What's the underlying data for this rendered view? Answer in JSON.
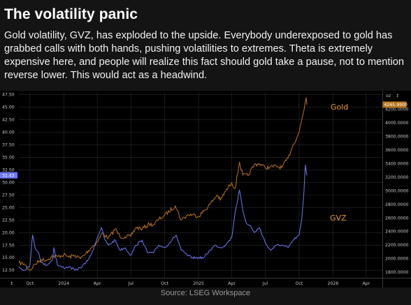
{
  "header": {
    "title": "The volatility panic",
    "body": "Gold volatility, GVZ, has exploded to the upside. Everybody underexposed to gold has grabbed calls with both hands, pushing volatilities to extremes. Theta is extremely expensive here, and people will realize this fact should gold take a pause, not to mention reverse lower. This would act as a headwind."
  },
  "source": "Source: LSEG Workspace",
  "colors": {
    "background": "#141414",
    "gold": "#b8731c",
    "gvz": "#6f78f5",
    "gold_label": "#e0962e",
    "gvz_label": "#e0962e"
  },
  "chart_data": {
    "type": "line",
    "x_tick_labels": [
      "Oct",
      "2024",
      "Apr",
      "Jul",
      "Oct",
      "2025",
      "Apr",
      "Jul",
      "Oct",
      "2026",
      "Apr"
    ],
    "x_tick_dates": [
      "2023-10-01",
      "2024-01-01",
      "2024-04-01",
      "2024-07-01",
      "2024-10-01",
      "2025-01-01",
      "2025-04-01",
      "2025-07-01",
      "2025-10-01",
      "2026-01-01",
      "2026-04-01"
    ],
    "x_range": [
      "2023-09-01",
      "2026-05-15"
    ],
    "left_axis": {
      "ticks": [
        "12.50",
        "15.00",
        "17.50",
        "20.00",
        "22.50",
        "25.00",
        "27.50",
        "30.00",
        "32.50",
        "35.00",
        "37.50",
        "40.00",
        "42.50",
        "45.00",
        "47.50"
      ],
      "range": [
        11.0,
        48.0
      ],
      "last_value_badge": "31.43"
    },
    "right_axis": {
      "unit": "oz",
      "ticks": [
        "1800.0000",
        "2000.0000",
        "2200.0000",
        "2400.0000",
        "2600.0000",
        "2800.0000",
        "3000.0000",
        "3200.0000",
        "3400.0000",
        "3600.0000",
        "3800.0000",
        "4000.0000",
        "4200.0000"
      ],
      "range": [
        1720,
        4450
      ],
      "last_value_badge": "4265.9900"
    },
    "grid": true,
    "series": [
      {
        "name": "Gold",
        "axis": "right",
        "points": [
          [
            "2023-09-01",
            1940
          ],
          [
            "2023-09-15",
            1925
          ],
          [
            "2023-10-01",
            1830
          ],
          [
            "2023-10-15",
            1920
          ],
          [
            "2023-11-01",
            1985
          ],
          [
            "2023-11-15",
            1980
          ],
          [
            "2023-12-01",
            2040
          ],
          [
            "2023-12-15",
            2030
          ],
          [
            "2024-01-01",
            2060
          ],
          [
            "2024-01-15",
            2025
          ],
          [
            "2024-02-01",
            2050
          ],
          [
            "2024-02-15",
            2000
          ],
          [
            "2024-03-01",
            2080
          ],
          [
            "2024-03-15",
            2160
          ],
          [
            "2024-04-01",
            2250
          ],
          [
            "2024-04-15",
            2380
          ],
          [
            "2024-05-01",
            2300
          ],
          [
            "2024-05-20",
            2440
          ],
          [
            "2024-06-01",
            2330
          ],
          [
            "2024-06-15",
            2320
          ],
          [
            "2024-07-01",
            2330
          ],
          [
            "2024-07-15",
            2460
          ],
          [
            "2024-08-01",
            2440
          ],
          [
            "2024-08-20",
            2510
          ],
          [
            "2024-09-01",
            2500
          ],
          [
            "2024-09-15",
            2580
          ],
          [
            "2024-10-01",
            2640
          ],
          [
            "2024-10-30",
            2780
          ],
          [
            "2024-11-15",
            2570
          ],
          [
            "2024-12-01",
            2640
          ],
          [
            "2024-12-15",
            2650
          ],
          [
            "2025-01-01",
            2625
          ],
          [
            "2025-01-15",
            2700
          ],
          [
            "2025-02-01",
            2800
          ],
          [
            "2025-02-20",
            2940
          ],
          [
            "2025-03-01",
            2860
          ],
          [
            "2025-03-15",
            2990
          ],
          [
            "2025-04-01",
            3120
          ],
          [
            "2025-04-10",
            3030
          ],
          [
            "2025-04-22",
            3420
          ],
          [
            "2025-05-01",
            3230
          ],
          [
            "2025-05-15",
            3220
          ],
          [
            "2025-06-01",
            3380
          ],
          [
            "2025-06-15",
            3400
          ],
          [
            "2025-07-01",
            3340
          ],
          [
            "2025-07-15",
            3350
          ],
          [
            "2025-08-01",
            3360
          ],
          [
            "2025-08-15",
            3340
          ],
          [
            "2025-09-01",
            3480
          ],
          [
            "2025-09-15",
            3680
          ],
          [
            "2025-10-01",
            3860
          ],
          [
            "2025-10-08",
            4040
          ],
          [
            "2025-10-14",
            4180
          ],
          [
            "2025-10-20",
            4370
          ],
          [
            "2025-10-22",
            4266
          ]
        ]
      },
      {
        "name": "GVZ",
        "axis": "left",
        "points": [
          [
            "2023-09-01",
            13.2
          ],
          [
            "2023-09-15",
            12.5
          ],
          [
            "2023-10-01",
            13.5
          ],
          [
            "2023-10-08",
            19.5
          ],
          [
            "2023-10-15",
            17.0
          ],
          [
            "2023-10-25",
            16.0
          ],
          [
            "2023-11-01",
            14.0
          ],
          [
            "2023-11-15",
            13.5
          ],
          [
            "2023-12-01",
            14.5
          ],
          [
            "2023-12-05",
            17.0
          ],
          [
            "2023-12-15",
            13.5
          ],
          [
            "2024-01-01",
            13.0
          ],
          [
            "2024-01-15",
            13.2
          ],
          [
            "2024-02-01",
            12.5
          ],
          [
            "2024-02-15",
            13.0
          ],
          [
            "2024-03-01",
            14.0
          ],
          [
            "2024-03-15",
            15.5
          ],
          [
            "2024-04-01",
            19.0
          ],
          [
            "2024-04-12",
            21.0
          ],
          [
            "2024-04-22",
            18.5
          ],
          [
            "2024-05-01",
            17.5
          ],
          [
            "2024-05-20",
            18.5
          ],
          [
            "2024-06-01",
            16.5
          ],
          [
            "2024-06-15",
            17.0
          ],
          [
            "2024-07-01",
            15.5
          ],
          [
            "2024-07-15",
            17.5
          ],
          [
            "2024-08-01",
            18.5
          ],
          [
            "2024-08-15",
            16.0
          ],
          [
            "2024-09-01",
            16.0
          ],
          [
            "2024-09-15",
            17.5
          ],
          [
            "2024-10-01",
            17.0
          ],
          [
            "2024-10-15",
            18.0
          ],
          [
            "2024-11-01",
            19.5
          ],
          [
            "2024-11-15",
            16.5
          ],
          [
            "2024-12-01",
            15.5
          ],
          [
            "2024-12-15",
            15.0
          ],
          [
            "2025-01-01",
            15.0
          ],
          [
            "2025-01-15",
            15.0
          ],
          [
            "2025-02-01",
            16.5
          ],
          [
            "2025-02-15",
            17.5
          ],
          [
            "2025-03-01",
            17.0
          ],
          [
            "2025-03-15",
            17.5
          ],
          [
            "2025-04-01",
            19.0
          ],
          [
            "2025-04-10",
            24.0
          ],
          [
            "2025-04-22",
            28.5
          ],
          [
            "2025-05-01",
            24.5
          ],
          [
            "2025-05-10",
            22.0
          ],
          [
            "2025-05-20",
            21.5
          ],
          [
            "2025-06-01",
            20.0
          ],
          [
            "2025-06-15",
            21.0
          ],
          [
            "2025-07-01",
            18.0
          ],
          [
            "2025-07-15",
            16.5
          ],
          [
            "2025-08-01",
            17.5
          ],
          [
            "2025-08-15",
            17.5
          ],
          [
            "2025-09-01",
            17.0
          ],
          [
            "2025-09-15",
            18.5
          ],
          [
            "2025-10-01",
            19.5
          ],
          [
            "2025-10-08",
            22.5
          ],
          [
            "2025-10-14",
            28.0
          ],
          [
            "2025-10-18",
            33.5
          ],
          [
            "2025-10-22",
            31.43
          ]
        ]
      }
    ]
  }
}
